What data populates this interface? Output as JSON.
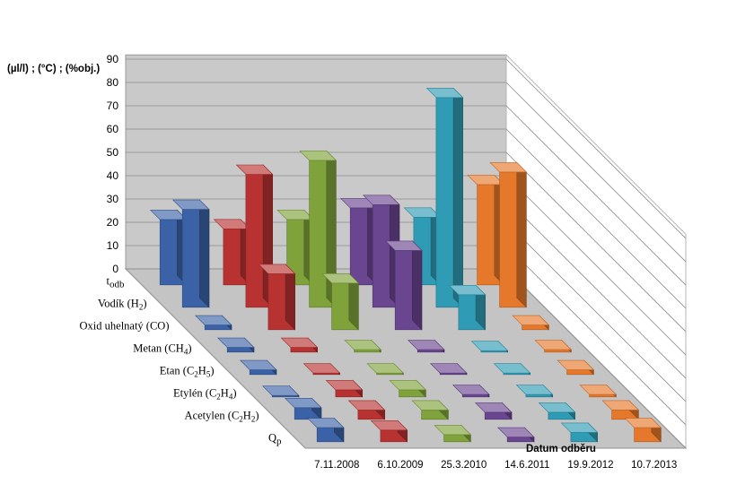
{
  "chart_data": {
    "type": "bar",
    "subtype": "3d-column",
    "title": "",
    "ylabel": "(µl/l) ; (°C) ; (%obj.)",
    "xlabel": "Datum odběru",
    "ylim": [
      0,
      90
    ],
    "yticks": [
      "0",
      "10",
      "20",
      "30",
      "40",
      "50",
      "60",
      "70",
      "80",
      "90"
    ],
    "grid": true,
    "legend": "none",
    "series_labels": [
      {
        "text": "Q",
        "sub": "p",
        "size": "large"
      },
      {
        "text": "Acetylen (C",
        "sub": "2",
        "text2": "H",
        "sub2": "2",
        "tail": ")"
      },
      {
        "text": "Etylén (C",
        "sub": "2",
        "text2": "H",
        "sub2": "4",
        "tail": ")"
      },
      {
        "text": "Etan (C",
        "sub": "2",
        "text2": "H",
        "sub2": "5",
        "tail": ")"
      },
      {
        "text": "Metan (CH",
        "sub": "4",
        "text2": "",
        "sub2": "",
        "tail": ")"
      },
      {
        "text": "Oxid uhelnatý (CO)",
        "sub": "",
        "text2": "",
        "sub2": "",
        "tail": ""
      },
      {
        "text": "Vodík (H",
        "sub": "2",
        "text2": "",
        "sub2": "",
        "tail": ")"
      },
      {
        "text": "t",
        "sub": "odb",
        "size": "large"
      }
    ],
    "dates": [
      "7.11.2008",
      "6.10.2009",
      "25.3.2010",
      "14.6.2011",
      "19.9.2012",
      "10.7.2013"
    ],
    "date_colors": [
      "#3b62a6",
      "#b83232",
      "#7fa33a",
      "#6a4590",
      "#2f9bb4",
      "#e5782a"
    ],
    "values": [
      [
        6,
        5,
        0,
        2,
        2,
        2,
        42,
        28
      ],
      [
        5,
        4,
        3,
        0,
        2,
        24,
        57,
        24
      ],
      [
        3,
        4,
        3,
        0,
        1,
        20,
        63,
        28
      ],
      [
        2,
        3,
        1,
        0,
        1,
        34,
        44,
        33
      ],
      [
        4,
        3,
        1,
        0,
        0,
        15,
        90,
        29
      ],
      [
        6,
        4,
        1,
        2,
        1,
        2,
        58,
        43
      ]
    ]
  }
}
